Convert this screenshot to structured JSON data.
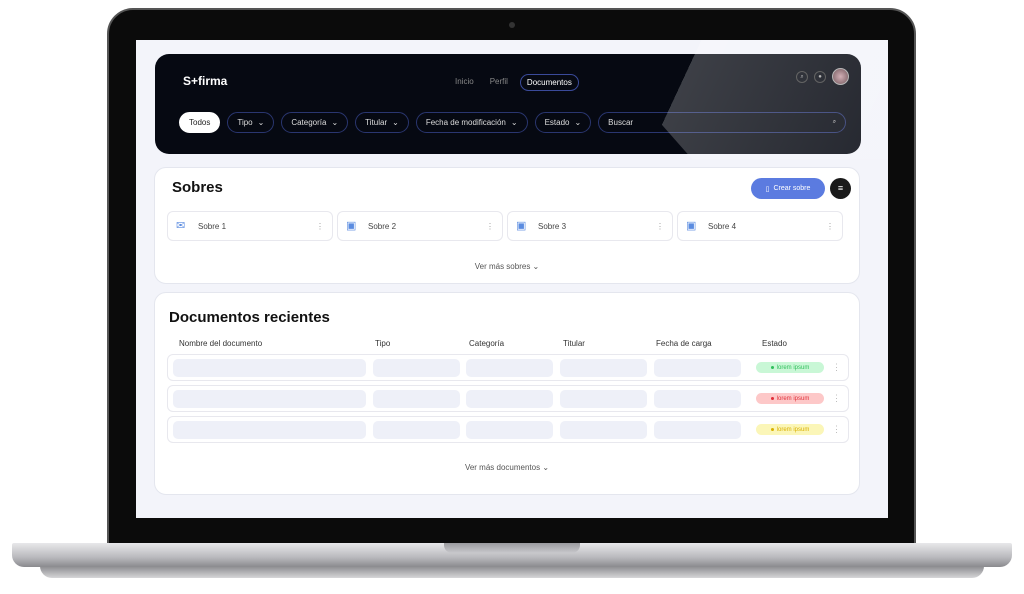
{
  "app": {
    "logo": "S+firma"
  },
  "nav": {
    "items": [
      "Inicio",
      "Perfil",
      "Documentos"
    ],
    "active": "Documentos"
  },
  "filters": {
    "all": "Todos",
    "dropdowns": [
      "Tipo",
      "Categoría",
      "Titular",
      "Fecha de modificación",
      "Estado"
    ],
    "search_placeholder": "Buscar"
  },
  "sobres": {
    "title": "Sobres",
    "create": "Crear sobre",
    "items": [
      {
        "label": "Sobre 1",
        "icon": "envelope-icon"
      },
      {
        "label": "Sobre 2",
        "icon": "calendar-envelope-icon"
      },
      {
        "label": "Sobre 3",
        "icon": "calendar-envelope-icon"
      },
      {
        "label": "Sobre 4",
        "icon": "calendar-envelope-icon"
      }
    ],
    "more": "Ver más sobres"
  },
  "docs": {
    "title": "Documentos recientes",
    "columns": [
      "Nombre del documento",
      "Tipo",
      "Categoría",
      "Titular",
      "Fecha de carga",
      "Estado"
    ],
    "rows": [
      {
        "status": "lorem ipsum",
        "bg": "#c9f7d6",
        "fg": "#2fbf5a"
      },
      {
        "status": "lorem ipsum",
        "bg": "#fdc8c8",
        "fg": "#e0303a"
      },
      {
        "status": "lorem ipsum",
        "bg": "#fbf6b8",
        "fg": "#d8b000"
      }
    ],
    "more": "Ver más documentos"
  }
}
